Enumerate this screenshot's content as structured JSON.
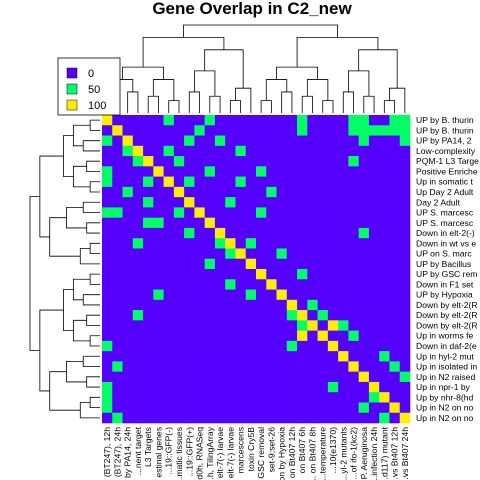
{
  "chart_data": {
    "type": "heatmap",
    "title": "Gene Overlap in C2_new",
    "colors": [
      "#5500FF",
      "#00FF66",
      "#FFEE00"
    ],
    "legend": {
      "placement": "top-left",
      "labels": [
        "0",
        "50",
        "100"
      ]
    },
    "row_labels": [
      "UP by B. thurin",
      "UP by B. thurin",
      "UP by PA14, 2",
      "Low-complexity",
      "PQM-1 L3 Targe",
      "Positive Enriche",
      "Up in somatic t",
      "Up Day 2 Adult",
      "Day 2 Adult",
      "UP S. marcesc",
      "UP S. marcesc",
      "Down in elt-2(-)",
      "Down in wt vs e",
      "UP on S. marc",
      "UP by Bacillus",
      "UP by GSC rem",
      "Down in F1 set",
      "UP by Hypoxia",
      "Down by elt-2(R",
      "Down by elt-2(R",
      "Down by elt-2(R",
      "Up in worms fe",
      "Down in daf-2(e",
      "Up in hyl-2 mut",
      "Up in isolated in",
      "Up in N2 raised",
      "Up in npr-1 by",
      "Up by nhr-8(hd",
      "Up in N2 on no",
      "Up in N2 on no"
    ],
    "col_labels": [
      "(BT247), 12h",
      "(BT247), 24h",
      "by PA14, 24h",
      "...nent target",
      "L3 Targets",
      "estinal genes",
      "...19::GFP(-)",
      "...matic tissues",
      "...19::GFP(+)",
      "...d0h, RNASeq",
      "...h, TilingArray",
      "elt-7(-) larvae",
      "elt-7(-) larvae",
      "marcescens",
      "toxin Cry5B",
      "GSC removal",
      "set-9;set-26",
      "on by Hypoxia",
      "on Bt407 12h",
      "on Bt407 6h",
      "... on Bt407 8h",
      "...temperature",
      "...10(e1370)",
      "...yl-2 mutants",
      "...of ifo-1(kc2)",
      ", P. Aeruginosa",
      "...infection 24h",
      "...d117) mutant",
      "...vs Bt407 12h",
      "...vs Bt407 24h"
    ],
    "values": [
      [
        100,
        0,
        0,
        0,
        0,
        0,
        50,
        0,
        0,
        0,
        50,
        0,
        0,
        0,
        0,
        0,
        0,
        0,
        0,
        50,
        0,
        0,
        0,
        0,
        50,
        50,
        0,
        0,
        50,
        50
      ],
      [
        0,
        100,
        0,
        0,
        0,
        0,
        0,
        0,
        0,
        0,
        0,
        0,
        0,
        0,
        0,
        0,
        0,
        0,
        0,
        50,
        0,
        0,
        0,
        0,
        50,
        50,
        50,
        50,
        50,
        50
      ],
      [
        50,
        0,
        100,
        0,
        0,
        0,
        0,
        0,
        0,
        0,
        0,
        0,
        0,
        0,
        0,
        0,
        0,
        0,
        0,
        0,
        0,
        0,
        0,
        0,
        0,
        50,
        0,
        0,
        0,
        50
      ],
      [
        0,
        0,
        50,
        100,
        0,
        0,
        0,
        0,
        0,
        0,
        0,
        0,
        0,
        0,
        0,
        0,
        0,
        0,
        0,
        0,
        0,
        0,
        0,
        0,
        0,
        0,
        0,
        0,
        0,
        0
      ],
      [
        0,
        0,
        0,
        0,
        100,
        0,
        0,
        50,
        0,
        0,
        0,
        0,
        0,
        0,
        0,
        0,
        0,
        0,
        0,
        0,
        0,
        0,
        0,
        0,
        50,
        0,
        0,
        0,
        0,
        0
      ],
      [
        50,
        0,
        0,
        0,
        0,
        100,
        0,
        0,
        0,
        0,
        0,
        0,
        0,
        0,
        0,
        50,
        0,
        0,
        0,
        0,
        0,
        0,
        0,
        0,
        0,
        0,
        0,
        0,
        0,
        0
      ],
      [
        50,
        0,
        0,
        0,
        50,
        0,
        100,
        0,
        50,
        0,
        0,
        0,
        0,
        0,
        0,
        0,
        0,
        0,
        0,
        0,
        0,
        0,
        0,
        0,
        0,
        0,
        0,
        0,
        0,
        0
      ],
      [
        0,
        0,
        50,
        0,
        0,
        0,
        0,
        100,
        0,
        0,
        0,
        0,
        0,
        0,
        0,
        0,
        0,
        0,
        0,
        0,
        0,
        0,
        0,
        0,
        0,
        0,
        0,
        0,
        0,
        0
      ],
      [
        0,
        0,
        0,
        0,
        50,
        0,
        0,
        0,
        100,
        0,
        0,
        0,
        0,
        0,
        0,
        0,
        0,
        0,
        0,
        0,
        0,
        0,
        0,
        0,
        0,
        0,
        0,
        0,
        0,
        0
      ],
      [
        50,
        50,
        0,
        0,
        0,
        0,
        0,
        50,
        0,
        100,
        0,
        0,
        0,
        0,
        0,
        0,
        0,
        0,
        0,
        0,
        0,
        0,
        0,
        0,
        0,
        0,
        0,
        0,
        0,
        0
      ],
      [
        0,
        0,
        0,
        0,
        0,
        50,
        0,
        0,
        0,
        0,
        100,
        0,
        0,
        0,
        0,
        0,
        0,
        0,
        0,
        0,
        0,
        0,
        0,
        0,
        0,
        0,
        0,
        0,
        0,
        0
      ],
      [
        0,
        0,
        0,
        0,
        0,
        0,
        0,
        0,
        0,
        0,
        0,
        100,
        0,
        0,
        0,
        0,
        0,
        0,
        0,
        0,
        0,
        0,
        0,
        0,
        0,
        50,
        0,
        0,
        0,
        0
      ],
      [
        0,
        0,
        0,
        0,
        0,
        0,
        0,
        0,
        0,
        0,
        0,
        50,
        100,
        0,
        0,
        0,
        0,
        0,
        0,
        0,
        0,
        0,
        0,
        0,
        0,
        0,
        0,
        0,
        0,
        0
      ],
      [
        0,
        0,
        0,
        0,
        0,
        0,
        0,
        0,
        0,
        0,
        0,
        0,
        50,
        100,
        0,
        0,
        0,
        0,
        0,
        0,
        0,
        0,
        0,
        0,
        0,
        0,
        0,
        0,
        0,
        0
      ],
      [
        0,
        0,
        0,
        0,
        0,
        0,
        0,
        0,
        0,
        0,
        0,
        0,
        0,
        0,
        100,
        0,
        0,
        0,
        0,
        0,
        0,
        0,
        0,
        0,
        0,
        0,
        0,
        0,
        0,
        0
      ],
      [
        0,
        0,
        0,
        0,
        0,
        0,
        0,
        0,
        0,
        0,
        0,
        0,
        0,
        0,
        0,
        100,
        0,
        0,
        0,
        0,
        0,
        0,
        0,
        0,
        0,
        0,
        0,
        0,
        0,
        0
      ],
      [
        0,
        0,
        0,
        0,
        0,
        0,
        0,
        0,
        0,
        0,
        0,
        0,
        0,
        0,
        0,
        0,
        100,
        0,
        0,
        0,
        0,
        0,
        0,
        0,
        0,
        0,
        0,
        0,
        0,
        0
      ],
      [
        0,
        0,
        0,
        0,
        0,
        0,
        0,
        0,
        0,
        0,
        0,
        0,
        0,
        0,
        0,
        0,
        0,
        100,
        0,
        0,
        0,
        0,
        0,
        0,
        0,
        0,
        0,
        0,
        0,
        0
      ],
      [
        0,
        0,
        0,
        0,
        0,
        0,
        0,
        0,
        0,
        0,
        0,
        0,
        0,
        0,
        0,
        0,
        0,
        0,
        100,
        0,
        0,
        0,
        0,
        0,
        0,
        0,
        0,
        0,
        0,
        0
      ],
      [
        0,
        0,
        0,
        0,
        0,
        0,
        0,
        0,
        0,
        0,
        0,
        0,
        0,
        0,
        0,
        0,
        0,
        0,
        50,
        100,
        0,
        0,
        0,
        0,
        0,
        0,
        0,
        0,
        0,
        0
      ],
      [
        0,
        0,
        0,
        0,
        0,
        0,
        0,
        0,
        0,
        0,
        0,
        0,
        0,
        0,
        0,
        0,
        0,
        0,
        0,
        50,
        100,
        0,
        0,
        0,
        0,
        0,
        0,
        0,
        0,
        0
      ],
      [
        0,
        0,
        0,
        0,
        0,
        0,
        0,
        0,
        0,
        0,
        0,
        0,
        0,
        0,
        0,
        0,
        0,
        0,
        0,
        0,
        0,
        100,
        0,
        0,
        0,
        0,
        0,
        0,
        0,
        0
      ],
      [
        0,
        0,
        0,
        0,
        0,
        0,
        0,
        0,
        0,
        0,
        0,
        0,
        0,
        0,
        0,
        0,
        0,
        0,
        0,
        0,
        0,
        0,
        100,
        0,
        0,
        0,
        0,
        0,
        0,
        0
      ],
      [
        0,
        0,
        0,
        0,
        0,
        0,
        0,
        0,
        0,
        0,
        0,
        0,
        0,
        0,
        0,
        0,
        0,
        0,
        0,
        0,
        0,
        0,
        0,
        100,
        0,
        0,
        0,
        0,
        0,
        0
      ],
      [
        0,
        0,
        0,
        0,
        0,
        0,
        0,
        0,
        0,
        0,
        0,
        0,
        0,
        0,
        0,
        0,
        0,
        0,
        0,
        0,
        0,
        0,
        0,
        0,
        100,
        0,
        0,
        0,
        0,
        0
      ],
      [
        0,
        0,
        0,
        0,
        0,
        0,
        0,
        0,
        0,
        0,
        0,
        0,
        0,
        0,
        0,
        0,
        0,
        0,
        0,
        0,
        0,
        0,
        0,
        0,
        0,
        100,
        0,
        0,
        0,
        0
      ],
      [
        0,
        0,
        0,
        0,
        0,
        0,
        0,
        0,
        0,
        0,
        0,
        0,
        0,
        0,
        0,
        0,
        0,
        0,
        0,
        0,
        0,
        0,
        0,
        0,
        0,
        0,
        100,
        0,
        0,
        0
      ],
      [
        0,
        0,
        0,
        0,
        0,
        0,
        0,
        0,
        0,
        0,
        0,
        0,
        0,
        0,
        0,
        0,
        0,
        0,
        0,
        0,
        0,
        0,
        0,
        0,
        0,
        0,
        0,
        100,
        0,
        0
      ],
      [
        0,
        0,
        0,
        0,
        0,
        0,
        0,
        0,
        0,
        0,
        0,
        0,
        0,
        0,
        0,
        0,
        0,
        0,
        0,
        0,
        0,
        0,
        0,
        0,
        0,
        0,
        0,
        0,
        100,
        0
      ],
      [
        0,
        0,
        0,
        0,
        0,
        0,
        0,
        0,
        0,
        0,
        0,
        0,
        0,
        0,
        0,
        0,
        0,
        0,
        0,
        0,
        0,
        0,
        0,
        0,
        0,
        0,
        0,
        0,
        0,
        100
      ]
    ],
    "extra_cells": [
      [
        1,
        9,
        50
      ],
      [
        2,
        11,
        50
      ],
      [
        3,
        13,
        50
      ],
      [
        5,
        10,
        50
      ],
      [
        6,
        13,
        50
      ],
      [
        7,
        16,
        50
      ],
      [
        8,
        12,
        50
      ],
      [
        9,
        15,
        50
      ],
      [
        11,
        8,
        50
      ],
      [
        12,
        14,
        50
      ],
      [
        13,
        17,
        50
      ],
      [
        14,
        10,
        50
      ],
      [
        15,
        19,
        50
      ],
      [
        16,
        12,
        50
      ],
      [
        17,
        14,
        50
      ],
      [
        18,
        20,
        50
      ],
      [
        19,
        21,
        50
      ],
      [
        20,
        23,
        50
      ],
      [
        21,
        24,
        50
      ],
      [
        22,
        18,
        50
      ],
      [
        23,
        27,
        50
      ],
      [
        24,
        28,
        50
      ],
      [
        25,
        29,
        50
      ],
      [
        26,
        22,
        50
      ],
      [
        27,
        26,
        50
      ],
      [
        28,
        25,
        50
      ],
      [
        29,
        27,
        50
      ],
      [
        21,
        19,
        100
      ],
      [
        20,
        22,
        100
      ],
      [
        4,
        3,
        50
      ],
      [
        10,
        4,
        50
      ],
      [
        17,
        5,
        50
      ],
      [
        24,
        1,
        50
      ],
      [
        26,
        0,
        50
      ],
      [
        27,
        0,
        50
      ],
      [
        28,
        0,
        50
      ],
      [
        29,
        1,
        50
      ],
      [
        22,
        0,
        50
      ],
      [
        19,
        3,
        50
      ],
      [
        3,
        6,
        50
      ],
      [
        4,
        7,
        50
      ],
      [
        2,
        8,
        50
      ],
      [
        12,
        3,
        50
      ]
    ]
  }
}
